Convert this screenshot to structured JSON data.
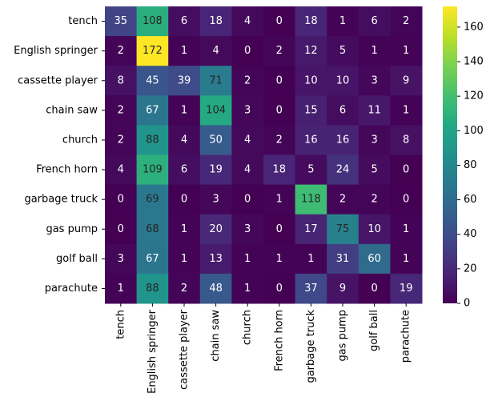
{
  "chart_data": {
    "type": "heatmap",
    "title": "",
    "xlabel": "",
    "ylabel": "",
    "x_categories": [
      "tench",
      "English springer",
      "cassette player",
      "chain saw",
      "church",
      "French horn",
      "garbage truck",
      "gas pump",
      "golf ball",
      "parachute"
    ],
    "y_categories": [
      "tench",
      "English springer",
      "cassette player",
      "chain saw",
      "church",
      "French horn",
      "garbage truck",
      "gas pump",
      "golf ball",
      "parachute"
    ],
    "values": [
      [
        35,
        108,
        6,
        18,
        4,
        0,
        18,
        1,
        6,
        2
      ],
      [
        2,
        172,
        1,
        4,
        0,
        2,
        12,
        5,
        1,
        1
      ],
      [
        8,
        45,
        39,
        71,
        2,
        0,
        10,
        10,
        3,
        9
      ],
      [
        2,
        67,
        1,
        104,
        3,
        0,
        15,
        6,
        11,
        1
      ],
      [
        2,
        88,
        4,
        50,
        4,
        2,
        16,
        16,
        3,
        8
      ],
      [
        4,
        109,
        6,
        19,
        4,
        18,
        5,
        24,
        5,
        0
      ],
      [
        0,
        69,
        0,
        3,
        0,
        1,
        118,
        2,
        2,
        0
      ],
      [
        0,
        68,
        1,
        20,
        3,
        0,
        17,
        75,
        10,
        1
      ],
      [
        3,
        67,
        1,
        13,
        1,
        1,
        1,
        31,
        60,
        1
      ],
      [
        1,
        88,
        2,
        48,
        1,
        0,
        37,
        9,
        0,
        19
      ]
    ],
    "colormap": "viridis",
    "vmin": 0,
    "vmax": 172,
    "annotations": true,
    "colorbar": {
      "ticks": [
        0,
        20,
        40,
        60,
        80,
        100,
        120,
        140,
        160
      ],
      "placement": "right"
    },
    "grid": false
  }
}
